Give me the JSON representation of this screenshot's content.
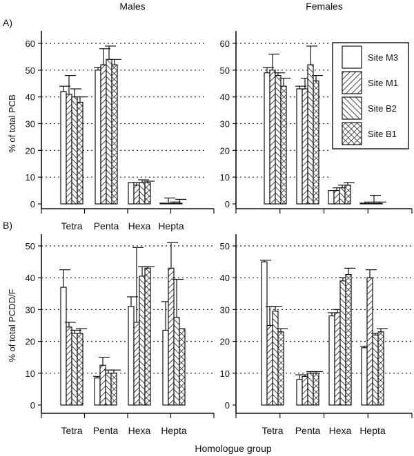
{
  "figure": {
    "col_titles": [
      "Males",
      "Females"
    ],
    "panel_labels": [
      "A)",
      "B)"
    ],
    "xlabel": "Homologue group"
  },
  "legend": {
    "entries": [
      "Site M3",
      "Site M1",
      "Site B2",
      "Site B1"
    ],
    "patterns": [
      "blank",
      "diag-fine",
      "diag-back",
      "crosshatch"
    ]
  },
  "chart_data": [
    {
      "type": "bar",
      "panel": "A",
      "sex": "Males",
      "ylabel": "% of total PCB",
      "ylim": [
        0,
        60
      ],
      "yticks": [
        "0",
        "10",
        "20",
        "30",
        "40",
        "50",
        "60"
      ],
      "categories": [
        "Tetra",
        "Penta",
        "Hexa",
        "Hepta"
      ],
      "grid": true,
      "series": [
        {
          "name": "Site M3",
          "values": [
            42,
            50,
            8,
            0.3
          ],
          "errors": [
            2,
            1,
            0,
            0
          ]
        },
        {
          "name": "Site M1",
          "values": [
            41,
            52,
            7,
            0.2
          ],
          "errors": [
            7,
            6,
            1,
            2
          ]
        },
        {
          "name": "Site B2",
          "values": [
            40,
            54,
            8,
            0.2
          ],
          "errors": [
            3,
            5,
            1,
            0.5
          ]
        },
        {
          "name": "Site B1",
          "values": [
            38,
            52,
            8,
            0.2
          ],
          "errors": [
            2,
            2,
            0.5,
            1.5
          ]
        }
      ]
    },
    {
      "type": "bar",
      "panel": "A",
      "sex": "Females",
      "ylabel": "",
      "ylim": [
        0,
        60
      ],
      "yticks": [
        "0",
        "10",
        "20",
        "30",
        "40",
        "50",
        "60"
      ],
      "categories": [
        "",
        "",
        "",
        ""
      ],
      "grid": true,
      "series": [
        {
          "name": "Site M3",
          "values": [
            49,
            43,
            5,
            0.3
          ],
          "errors": [
            2,
            1,
            0,
            0
          ]
        },
        {
          "name": "Site M1",
          "values": [
            50,
            43,
            5,
            0.2
          ],
          "errors": [
            6,
            4,
            1,
            0.5
          ]
        },
        {
          "name": "Site B2",
          "values": [
            48,
            52,
            6,
            0.2
          ],
          "errors": [
            1,
            7,
            1,
            3
          ]
        },
        {
          "name": "Site B1",
          "values": [
            44,
            46,
            7,
            0.2
          ],
          "errors": [
            3,
            2,
            1,
            0.5
          ]
        }
      ]
    },
    {
      "type": "bar",
      "panel": "B",
      "sex": "Males",
      "ylabel": "% of total PCDD/F",
      "ylim": [
        0,
        50
      ],
      "yticks": [
        "0",
        "10",
        "20",
        "30",
        "40",
        "50"
      ],
      "categories": [
        "Tetra",
        "Penta",
        "Hexa",
        "Hepta"
      ],
      "grid": true,
      "series": [
        {
          "name": "Site M3",
          "values": [
            37,
            8.5,
            31,
            23.5
          ],
          "errors": [
            5.5,
            0.5,
            3,
            9
          ]
        },
        {
          "name": "Site M1",
          "values": [
            24.5,
            12.5,
            26,
            43
          ],
          "errors": [
            1.5,
            2.5,
            23.5,
            8
          ]
        },
        {
          "name": "Site B2",
          "values": [
            22.5,
            10,
            40.5,
            27.5
          ],
          "errors": [
            1,
            1,
            3,
            12
          ]
        },
        {
          "name": "Site B1",
          "values": [
            22.5,
            10,
            43,
            24
          ],
          "errors": [
            1.5,
            1,
            0.5,
            0
          ]
        }
      ]
    },
    {
      "type": "bar",
      "panel": "B",
      "sex": "Females",
      "ylabel": "",
      "ylim": [
        0,
        50
      ],
      "yticks": [
        "0",
        "10",
        "20",
        "30",
        "40",
        "50"
      ],
      "categories": [
        "Tetra",
        "Penta",
        "Hexa",
        "Hepta"
      ],
      "grid": true,
      "series": [
        {
          "name": "Site M3",
          "values": [
            45,
            8,
            28,
            18
          ],
          "errors": [
            0.5,
            1.5,
            1,
            0.5
          ]
        },
        {
          "name": "Site M1",
          "values": [
            25,
            9,
            29,
            40
          ],
          "errors": [
            6,
            0.5,
            1,
            2.5
          ]
        },
        {
          "name": "Site B2",
          "values": [
            29.5,
            10,
            39,
            22
          ],
          "errors": [
            1.5,
            0.5,
            1,
            0.5
          ]
        },
        {
          "name": "Site B1",
          "values": [
            23,
            10,
            41,
            23
          ],
          "errors": [
            1,
            0.5,
            2,
            1
          ]
        }
      ]
    }
  ]
}
